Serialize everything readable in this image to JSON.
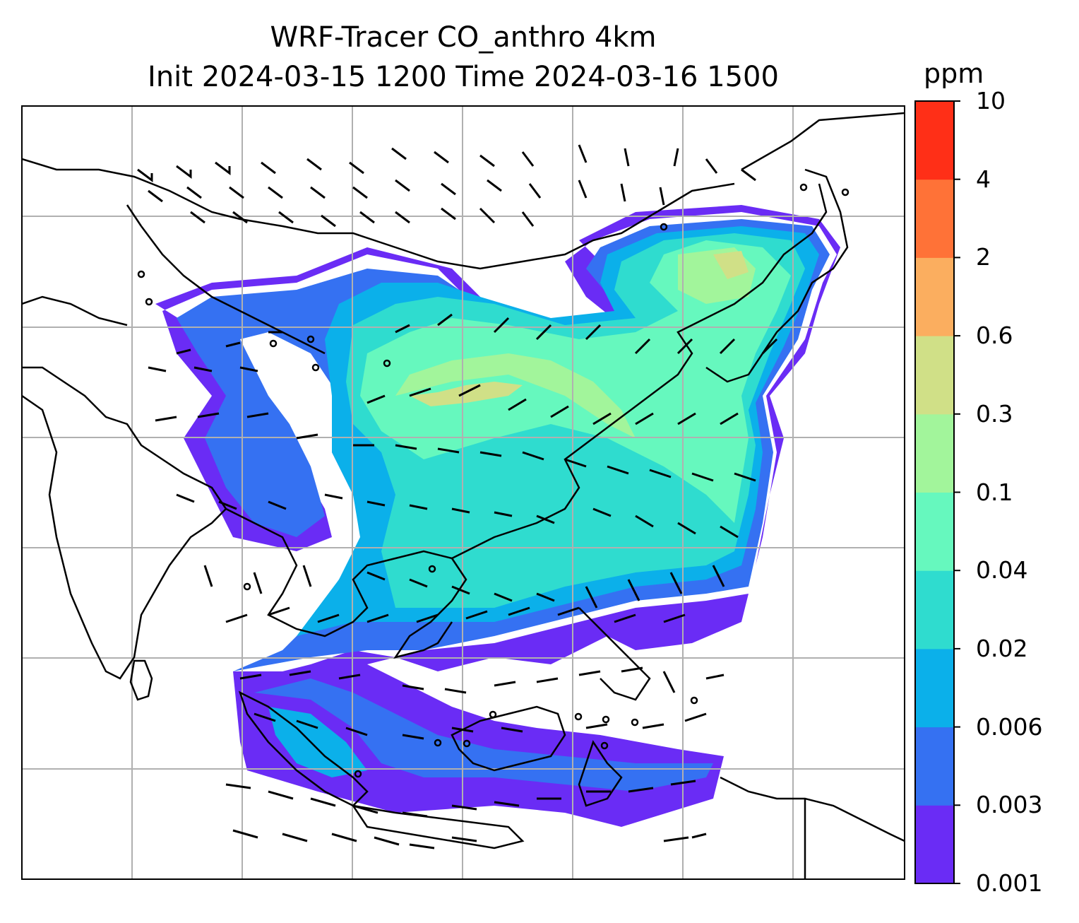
{
  "title": {
    "line1": "WRF-Tracer CO_anthro 4km",
    "line2": "Init 2024-03-15 1200 Time 2024-03-16 1500"
  },
  "colorbar": {
    "unit": "ppm",
    "levels": [
      "0.001",
      "0.003",
      "0.006",
      "0.02",
      "0.04",
      "0.1",
      "0.3",
      "0.6",
      "2",
      "4",
      "10"
    ],
    "colors": [
      "#6a2cf5",
      "#3571f2",
      "#0bb0ea",
      "#2fdccf",
      "#66f8be",
      "#a2f59b",
      "#d0e087",
      "#fbae5f",
      "#ff7237",
      "#ff2f17"
    ]
  },
  "map": {
    "background": "#ffffff",
    "gridline_color": "#b0b0b0",
    "coastline_color": "#000000",
    "wind_barb_color": "#000000"
  }
}
